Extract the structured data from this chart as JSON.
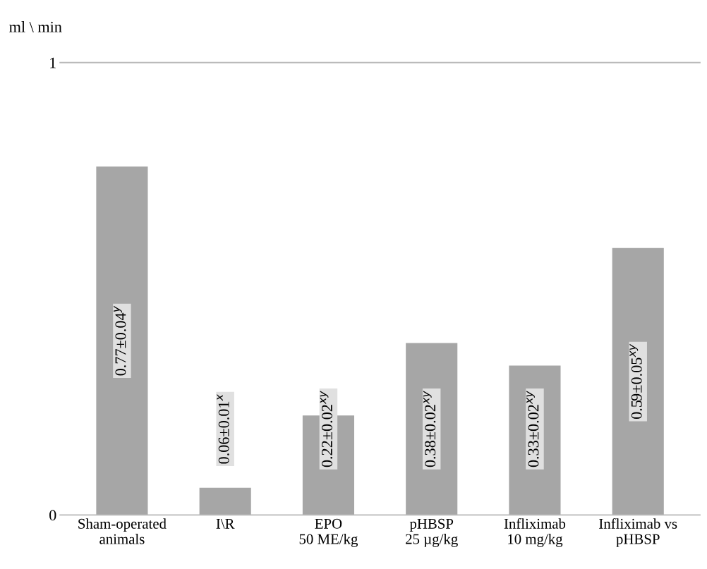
{
  "chart_data": {
    "type": "bar",
    "ylabel": "ml \\ min",
    "categories": [
      "Sham-operated\nanimals",
      "I\\R",
      "EPO\n50 ME/kg",
      "pHBSP\n25 µg/kg",
      "Infliximab\n10 mg/kg",
      "Infliximab vs\npHBSP"
    ],
    "values": [
      0.77,
      0.06,
      0.22,
      0.38,
      0.33,
      0.59
    ],
    "value_labels": [
      "0.77±0.04$^{y}$",
      "0.06±0.01$^{x}$",
      "0.22±0.02$^{xy}$",
      "0.38±0.02$^{xy}$",
      "0.33±0.02$^{xy}$",
      "0.59±0.05$^{xy}$"
    ],
    "color": "#a6a6a6",
    "ylim": [
      0,
      1
    ],
    "yticks": [
      0,
      1
    ]
  }
}
